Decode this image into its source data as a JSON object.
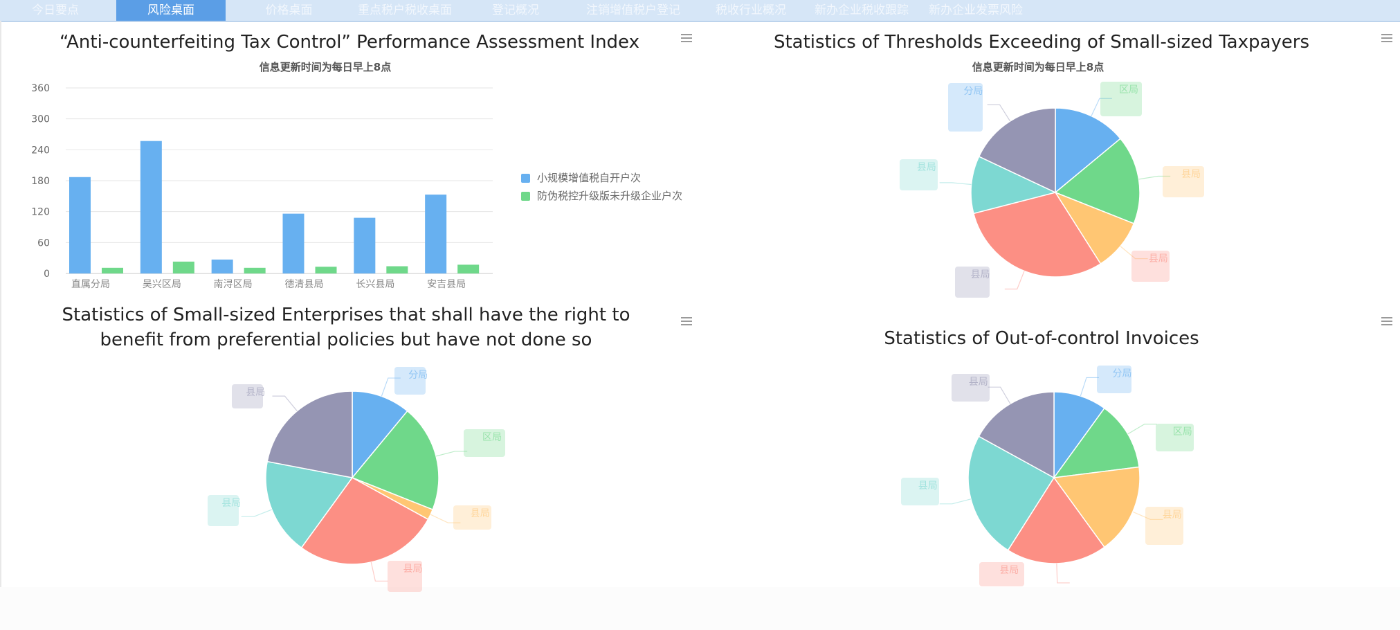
{
  "nav": {
    "tabs": [
      {
        "label": "今日要点",
        "active": false
      },
      {
        "label": "风险桌面",
        "active": true
      },
      {
        "label": "价格桌面",
        "active": false
      },
      {
        "label": "重点税户税收桌面",
        "active": false
      },
      {
        "label": "登记概况",
        "active": false
      },
      {
        "label": "注销增值税户登记",
        "active": false
      },
      {
        "label": "税收行业概况",
        "active": false
      },
      {
        "label": "新办企业税收跟踪",
        "active": false
      },
      {
        "label": "新办企业发票风险",
        "active": false
      }
    ]
  },
  "panels": {
    "bar": {
      "title": "“Anti-counterfeiting Tax Control” Performance Assessment Index",
      "subtitle": "信息更新时间为每日早上8点"
    },
    "pie1": {
      "title": "Statistics of Thresholds Exceeding of Small-sized Taxpayers",
      "subtitle": "信息更新时间为每日早上8点"
    },
    "pie2": {
      "title_line1": "Statistics of Small-sized Enterprises that shall have the right to",
      "title_line2": "benefit from preferential policies but have not done so"
    },
    "pie3": {
      "title": "Statistics of Out-of-control Invoices"
    }
  },
  "icons": {
    "panel_menu": "hamburger-menu-icon"
  },
  "colors": {
    "blue": "#67b0f0",
    "green": "#6fd88a",
    "orange": "#ffc673",
    "red": "#fc8f84",
    "teal": "#7dd8d2",
    "purple": "#9595b3"
  },
  "chart_data": [
    {
      "type": "bar",
      "categories": [
        "直属分局",
        "吴兴区局",
        "南浔区局",
        "德清县局",
        "长兴县局",
        "安吉县局"
      ],
      "series": [
        {
          "name": "小规模增值税自开户次",
          "values": [
            187,
            257,
            27,
            116,
            108,
            153
          ],
          "color": "#67b0f0"
        },
        {
          "name": "防伪税控升级版未升级企业户次",
          "values": [
            11,
            23,
            11,
            13,
            14,
            17
          ],
          "color": "#6fd88a"
        }
      ],
      "ylim": [
        0,
        360
      ],
      "yticks": [
        0,
        60,
        120,
        180,
        240,
        300,
        360
      ],
      "grid": true,
      "legend": "right"
    },
    {
      "type": "pie",
      "slices": [
        {
          "label": "分局",
          "value": 14,
          "color": "#67b0f0"
        },
        {
          "label": "区局",
          "value": 17,
          "color": "#6fd88a"
        },
        {
          "label": "县局",
          "value": 10,
          "color": "#ffc673"
        },
        {
          "label": "县局",
          "value": 30,
          "color": "#fc8f84"
        },
        {
          "label": "县局",
          "value": 11,
          "color": "#7dd8d2"
        },
        {
          "label": "县局",
          "value": 18,
          "color": "#9595b3"
        }
      ]
    },
    {
      "type": "pie",
      "slices": [
        {
          "label": "分局",
          "value": 11,
          "color": "#67b0f0"
        },
        {
          "label": "区局",
          "value": 20,
          "color": "#6fd88a"
        },
        {
          "label": "县局",
          "value": 2,
          "color": "#ffc673"
        },
        {
          "label": "县局",
          "value": 27,
          "color": "#fc8f84"
        },
        {
          "label": "县局",
          "value": 18,
          "color": "#7dd8d2"
        },
        {
          "label": "县局",
          "value": 22,
          "color": "#9595b3"
        }
      ]
    },
    {
      "type": "pie",
      "slices": [
        {
          "label": "分局",
          "value": 10,
          "color": "#67b0f0"
        },
        {
          "label": "区局",
          "value": 13,
          "color": "#6fd88a"
        },
        {
          "label": "县局",
          "value": 17,
          "color": "#ffc673"
        },
        {
          "label": "县局",
          "value": 19,
          "color": "#fc8f84"
        },
        {
          "label": "县局",
          "value": 24,
          "color": "#7dd8d2"
        },
        {
          "label": "县局",
          "value": 17,
          "color": "#9595b3"
        }
      ]
    }
  ]
}
